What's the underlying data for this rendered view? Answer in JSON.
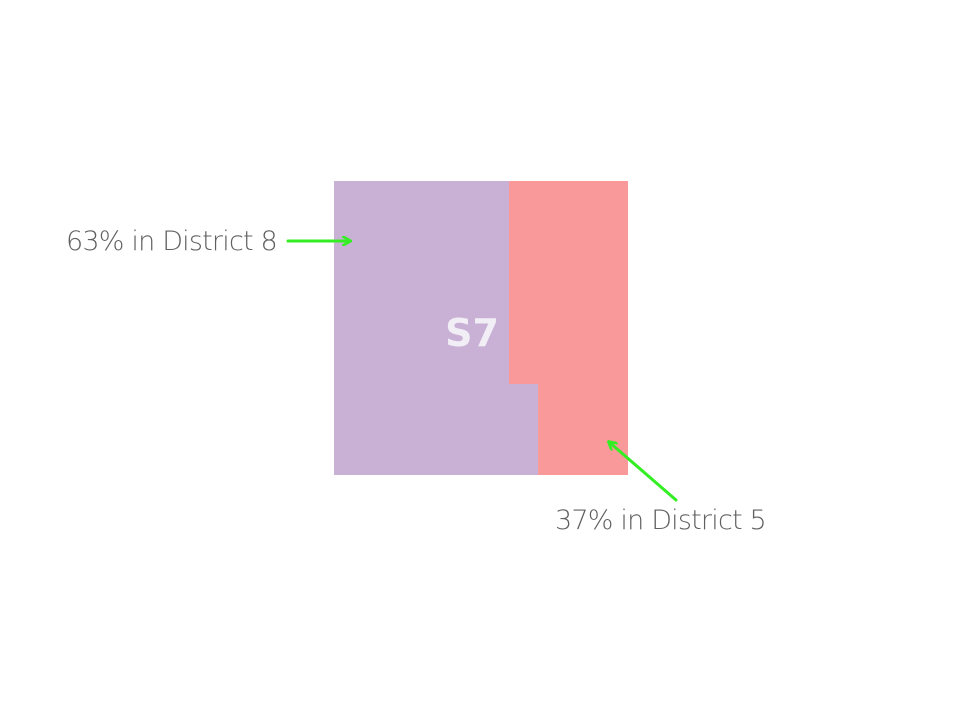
{
  "tract": {
    "label": "S7",
    "district_8_color": "#c9b1d6",
    "district_5_color": "#fa999a",
    "label_color": "#f1eef5"
  },
  "annotations": {
    "district_8": {
      "text": "63% in District 8",
      "share_percent": 63
    },
    "district_5": {
      "text": "37% in District 5",
      "share_percent": 37
    },
    "text_color": "#606060",
    "arrow_color": "#33ee22"
  }
}
